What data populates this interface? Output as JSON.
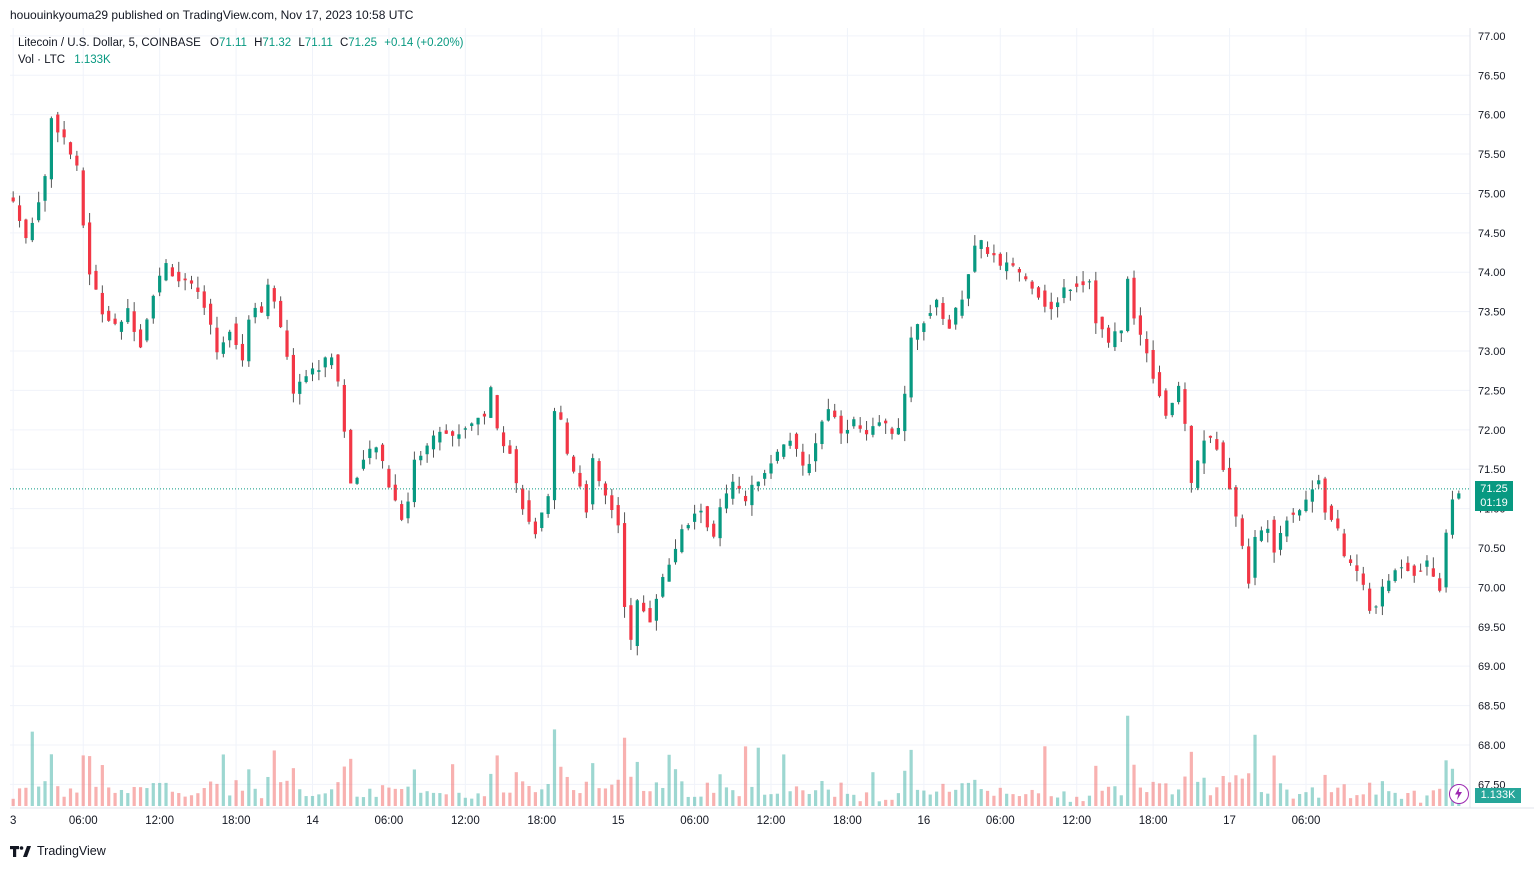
{
  "publisher": "hououinkyouma29 published on TradingView.com, Nov 17, 2023 10:58 UTC",
  "legend": {
    "symbol": "Litecoin / U.S. Dollar, 5, COINBASE",
    "open_key": "O",
    "open": "71.11",
    "high_key": "H",
    "high": "71.32",
    "low_key": "L",
    "low": "71.11",
    "close_key": "C",
    "close": "71.25",
    "change": "+0.14 (+0.20%)",
    "vol_label": "Vol · LTC",
    "vol_value": "1.133K"
  },
  "badges": {
    "price": "71.25",
    "countdown": "01:19",
    "volume": "1.133K"
  },
  "footer": {
    "brand": "TradingView"
  },
  "colors": {
    "up": "#089981",
    "down": "#f23645",
    "up_vol": "#26a69a",
    "down_vol": "#ef5350",
    "grid": "#f0f3fa"
  },
  "chart_data": {
    "type": "candlestick",
    "title": "Litecoin / U.S. Dollar, 5, COINBASE",
    "xlabel": "",
    "ylabel": "",
    "ylim": [
      67.2,
      77.1
    ],
    "y_ticks": [
      "77.00",
      "76.50",
      "76.00",
      "75.50",
      "75.00",
      "74.50",
      "74.00",
      "73.50",
      "73.00",
      "72.50",
      "72.00",
      "71.50",
      "71.00",
      "70.50",
      "70.00",
      "69.50",
      "69.00",
      "68.50",
      "68.00",
      "67.50"
    ],
    "x_ticks": [
      "3",
      "06:00",
      "12:00",
      "18:00",
      "14",
      "06:00",
      "12:00",
      "18:00",
      "15",
      "06:00",
      "12:00",
      "18:00",
      "16",
      "06:00",
      "12:00",
      "18:00",
      "17",
      "06:00"
    ],
    "last_price": 71.25,
    "price_path": [
      [
        0,
        74.9
      ],
      [
        2,
        74.4
      ],
      [
        5,
        75.2
      ],
      [
        6,
        75.95
      ],
      [
        8,
        75.7
      ],
      [
        9,
        75.5
      ],
      [
        10,
        75.3
      ],
      [
        11,
        74.6
      ],
      [
        12,
        74.0
      ],
      [
        14,
        73.5
      ],
      [
        16,
        73.3
      ],
      [
        18,
        73.5
      ],
      [
        20,
        73.1
      ],
      [
        22,
        73.75
      ],
      [
        24,
        74.1
      ],
      [
        26,
        73.9
      ],
      [
        28,
        73.8
      ],
      [
        30,
        73.6
      ],
      [
        32,
        73.0
      ],
      [
        34,
        73.3
      ],
      [
        35,
        73.1
      ],
      [
        36,
        72.9
      ],
      [
        37,
        73.4
      ],
      [
        38,
        73.6
      ],
      [
        39,
        73.5
      ],
      [
        40,
        73.8
      ],
      [
        41,
        73.6
      ],
      [
        43,
        72.9
      ],
      [
        44,
        72.5
      ],
      [
        46,
        72.7
      ],
      [
        48,
        72.8
      ],
      [
        50,
        72.95
      ],
      [
        51,
        72.6
      ],
      [
        52,
        72.0
      ],
      [
        53,
        71.3
      ],
      [
        55,
        71.6
      ],
      [
        57,
        71.8
      ],
      [
        59,
        71.3
      ],
      [
        61,
        70.9
      ],
      [
        62,
        71.1
      ],
      [
        63,
        71.6
      ],
      [
        65,
        71.8
      ],
      [
        67,
        72.0
      ],
      [
        69,
        71.9
      ],
      [
        72,
        72.1
      ],
      [
        74,
        72.2
      ],
      [
        75,
        72.5
      ],
      [
        76,
        72.0
      ],
      [
        78,
        71.7
      ],
      [
        79,
        71.3
      ],
      [
        81,
        70.8
      ],
      [
        82,
        70.7
      ],
      [
        84,
        71.1
      ],
      [
        85,
        72.2
      ],
      [
        86,
        72.1
      ],
      [
        87,
        71.7
      ],
      [
        89,
        71.3
      ],
      [
        90,
        71.0
      ],
      [
        91,
        71.6
      ],
      [
        92,
        71.3
      ],
      [
        94,
        71.0
      ],
      [
        95,
        70.8
      ],
      [
        96,
        69.8
      ],
      [
        97,
        69.3
      ],
      [
        98,
        69.8
      ],
      [
        100,
        69.6
      ],
      [
        101,
        69.9
      ],
      [
        103,
        70.3
      ],
      [
        105,
        70.7
      ],
      [
        107,
        70.9
      ],
      [
        108,
        71.0
      ],
      [
        110,
        70.6
      ],
      [
        111,
        71.0
      ],
      [
        113,
        71.3
      ],
      [
        115,
        71.1
      ],
      [
        117,
        71.4
      ],
      [
        119,
        71.6
      ],
      [
        121,
        71.8
      ],
      [
        122,
        71.9
      ],
      [
        124,
        71.5
      ],
      [
        125,
        71.6
      ],
      [
        127,
        72.1
      ],
      [
        128,
        72.3
      ],
      [
        130,
        72.0
      ],
      [
        132,
        72.1
      ],
      [
        134,
        71.9
      ],
      [
        136,
        72.1
      ],
      [
        138,
        72.0
      ],
      [
        139,
        72.0
      ],
      [
        140,
        72.4
      ],
      [
        141,
        73.2
      ],
      [
        143,
        73.4
      ],
      [
        145,
        73.6
      ],
      [
        147,
        73.3
      ],
      [
        149,
        73.7
      ],
      [
        150,
        74.0
      ],
      [
        151,
        74.3
      ],
      [
        152,
        74.35
      ],
      [
        154,
        74.2
      ],
      [
        155,
        74.05
      ],
      [
        157,
        74.1
      ],
      [
        159,
        73.9
      ],
      [
        160,
        73.85
      ],
      [
        162,
        73.6
      ],
      [
        163,
        73.5
      ],
      [
        165,
        73.8
      ],
      [
        167,
        73.85
      ],
      [
        169,
        73.9
      ],
      [
        170,
        73.4
      ],
      [
        172,
        73.1
      ],
      [
        174,
        73.3
      ],
      [
        175,
        73.9
      ],
      [
        176,
        73.4
      ],
      [
        178,
        73.0
      ],
      [
        179,
        72.7
      ],
      [
        181,
        72.2
      ],
      [
        183,
        72.5
      ],
      [
        184,
        72.1
      ],
      [
        185,
        71.3
      ],
      [
        187,
        71.9
      ],
      [
        189,
        71.8
      ],
      [
        191,
        71.3
      ],
      [
        193,
        70.5
      ],
      [
        194,
        70.1
      ],
      [
        195,
        70.6
      ],
      [
        197,
        70.8
      ],
      [
        198,
        70.5
      ],
      [
        200,
        70.9
      ],
      [
        202,
        71.0
      ],
      [
        203,
        71.1
      ],
      [
        205,
        71.4
      ],
      [
        206,
        71.0
      ],
      [
        208,
        70.7
      ],
      [
        209,
        70.4
      ],
      [
        211,
        70.2
      ],
      [
        212,
        70.0
      ],
      [
        213,
        69.7
      ],
      [
        214,
        69.8
      ],
      [
        216,
        70.1
      ],
      [
        218,
        70.3
      ],
      [
        220,
        70.2
      ],
      [
        222,
        70.3
      ],
      [
        224,
        70.0
      ],
      [
        225,
        70.7
      ],
      [
        226,
        71.1
      ],
      [
        227,
        71.25
      ]
    ],
    "bar_count": 228,
    "x_tick_bar_index": [
      0,
      11,
      23,
      35,
      47,
      59,
      71,
      83,
      95,
      107,
      119,
      131,
      143,
      155,
      167,
      179,
      191,
      203
    ]
  }
}
